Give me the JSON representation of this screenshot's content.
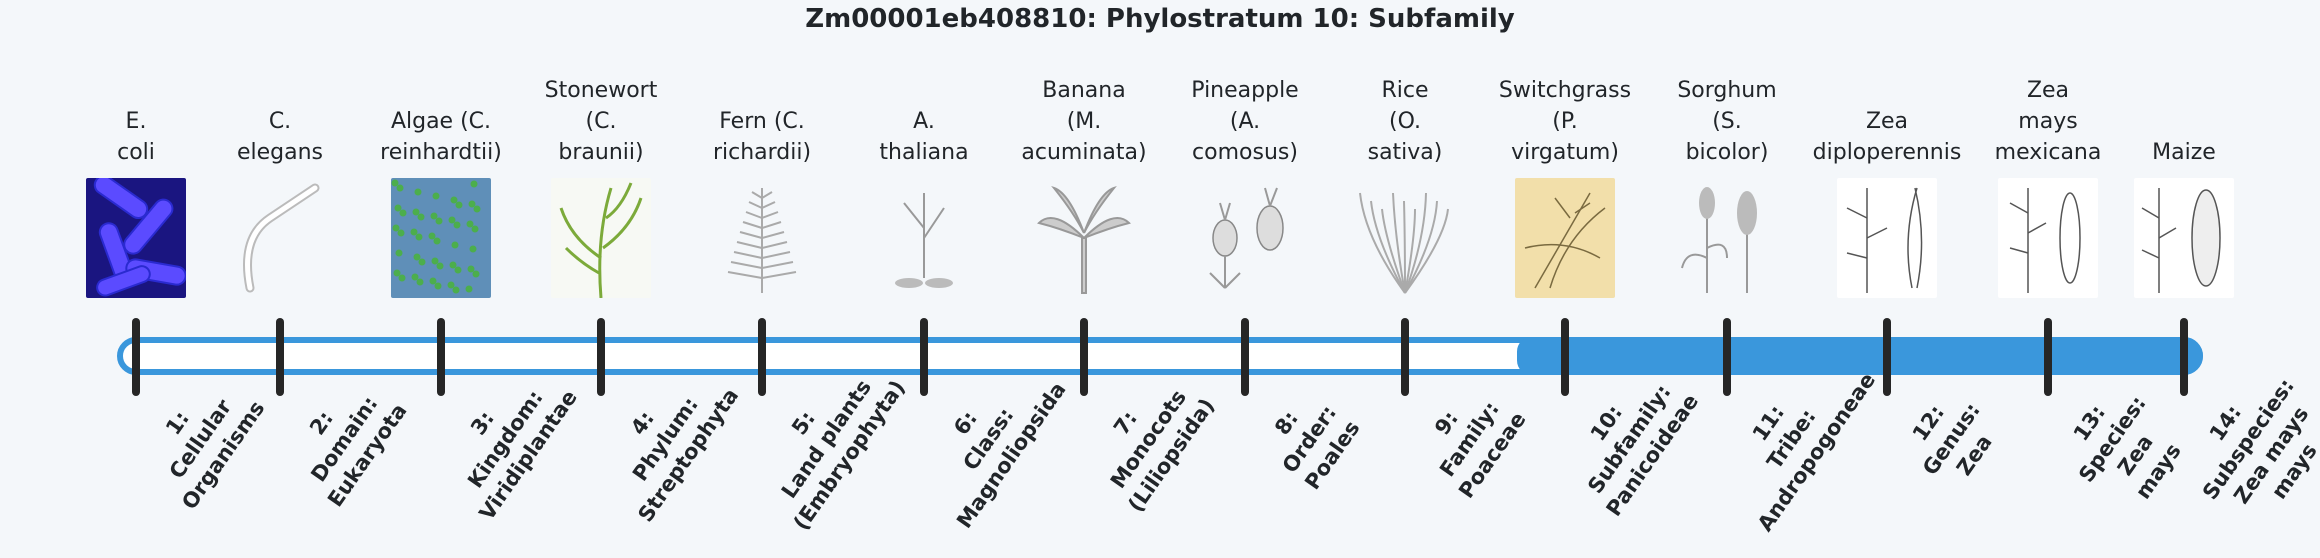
{
  "title": "Zm00001eb408810: Phylostratum 10: Subfamily",
  "accent_color": "#3a97dc",
  "current_stratum": 10,
  "strata": [
    {
      "organism": "E.\ncoli",
      "label": "1:\nCellular\nOrganisms",
      "icon": "bacteria-image"
    },
    {
      "organism": "C.\nelegans",
      "label": "2:\nDomain:\nEukaryota",
      "icon": "worm-image"
    },
    {
      "organism": "Algae (C.\nreinhardtii)",
      "label": "3:\nKingdom:\nViridiplantae",
      "icon": "algae-image"
    },
    {
      "organism": "Stonewort\n(C.\nbraunii)",
      "label": "4:\nPhylum:\nStreptophyta",
      "icon": "stonewort-image"
    },
    {
      "organism": "Fern (C.\nrichardii)",
      "label": "5:\nLand plants\n(Embryophyta)",
      "icon": "fern-image"
    },
    {
      "organism": "A.\nthaliana",
      "label": "6:\nClass:\nMagnoliopsida",
      "icon": "arabidopsis-image"
    },
    {
      "organism": "Banana\n(M.\nacuminata)",
      "label": "7:\nMonocots\n(Liliopsida)",
      "icon": "banana-image"
    },
    {
      "organism": "Pineapple\n(A.\ncomosus)",
      "label": "8:\nOrder:\nPoales",
      "icon": "pineapple-image"
    },
    {
      "organism": "Rice\n(O.\nsativa)",
      "label": "9:\nFamily:\nPoaceae",
      "icon": "rice-image"
    },
    {
      "organism": "Switchgrass\n(P.\nvirgatum)",
      "label": "10:\nSubfamily:\nPanicoideae",
      "icon": "switchgrass-image"
    },
    {
      "organism": "Sorghum\n(S.\nbicolor)",
      "label": "11:\nTribe:\nAndropogoneae",
      "icon": "sorghum-image"
    },
    {
      "organism": "Zea\ndiploperennis",
      "label": "12:\nGenus:\nZea",
      "icon": "zea-diploperennis-image"
    },
    {
      "organism": "Zea\nmays\nmexicana",
      "label": "13:\nSpecies:\nZea\nmays",
      "icon": "zea-mexicana-image"
    },
    {
      "organism": "Maize",
      "label": "14:\nSubspecies:\nZea mays\nmays",
      "icon": "maize-image"
    }
  ]
}
